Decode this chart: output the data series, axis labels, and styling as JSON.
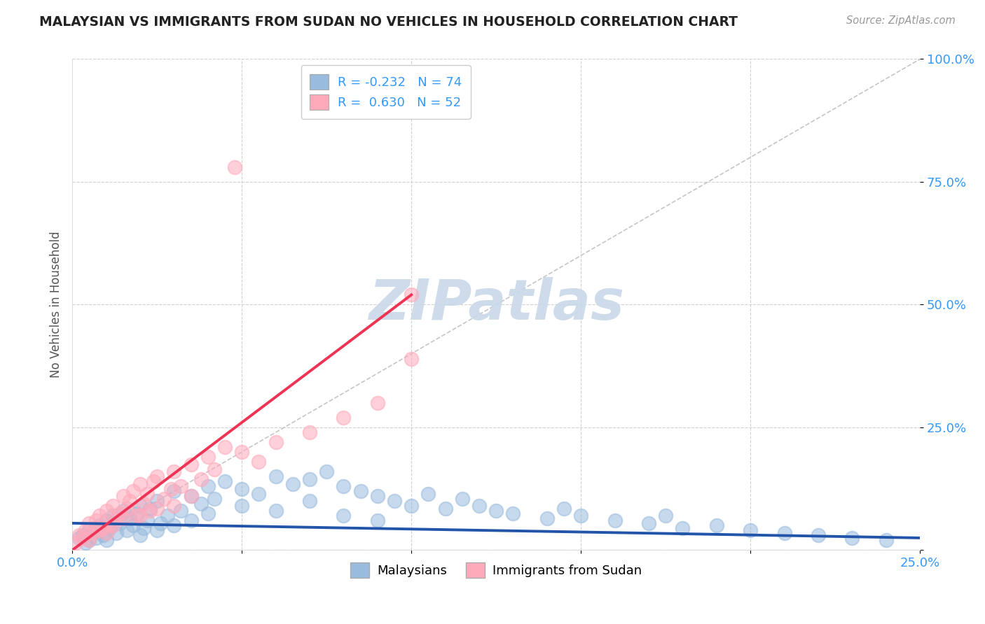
{
  "title": "MALAYSIAN VS IMMIGRANTS FROM SUDAN NO VEHICLES IN HOUSEHOLD CORRELATION CHART",
  "source_text": "Source: ZipAtlas.com",
  "ylabel": "No Vehicles in Household",
  "legend_blue_label": "Malaysians",
  "legend_pink_label": "Immigrants from Sudan",
  "legend_blue_r": "R = -0.232",
  "legend_blue_n": "N = 74",
  "legend_pink_r": "R =  0.630",
  "legend_pink_n": "N = 52",
  "blue_color": "#99BBDD",
  "pink_color": "#FFAABB",
  "trend_blue_color": "#2255AA",
  "trend_pink_color": "#EE3355",
  "diag_color": "#BBBBBB",
  "watermark_color": "#C8D8E8",
  "background_color": "#FFFFFF",
  "title_color": "#222222",
  "axis_label_color": "#3399FF",
  "xmin": 0.0,
  "xmax": 25.0,
  "ymin": 0.0,
  "ymax": 100.0,
  "blue_scatter_x": [
    0.2,
    0.3,
    0.4,
    0.5,
    0.5,
    0.6,
    0.7,
    0.8,
    0.9,
    1.0,
    1.0,
    1.1,
    1.2,
    1.3,
    1.4,
    1.5,
    1.6,
    1.7,
    1.8,
    1.9,
    2.0,
    2.1,
    2.2,
    2.3,
    2.5,
    2.6,
    2.8,
    3.0,
    3.2,
    3.5,
    3.8,
    4.0,
    4.2,
    4.5,
    5.0,
    5.5,
    6.0,
    6.5,
    7.0,
    7.5,
    8.0,
    8.5,
    9.0,
    9.5,
    10.0,
    10.5,
    11.0,
    11.5,
    12.0,
    12.5,
    13.0,
    14.0,
    14.5,
    15.0,
    16.0,
    17.0,
    17.5,
    18.0,
    19.0,
    20.0,
    21.0,
    22.0,
    23.0,
    24.0,
    2.0,
    2.5,
    3.0,
    3.5,
    4.0,
    5.0,
    6.0,
    7.0,
    8.0,
    9.0
  ],
  "blue_scatter_y": [
    2.5,
    3.0,
    1.5,
    4.0,
    2.0,
    3.5,
    2.5,
    5.0,
    3.0,
    6.0,
    2.0,
    4.5,
    7.0,
    3.5,
    5.5,
    8.0,
    4.0,
    6.5,
    5.0,
    7.5,
    9.0,
    4.5,
    6.0,
    8.5,
    10.0,
    5.5,
    7.0,
    12.0,
    8.0,
    11.0,
    9.5,
    13.0,
    10.5,
    14.0,
    12.5,
    11.5,
    15.0,
    13.5,
    14.5,
    16.0,
    13.0,
    12.0,
    11.0,
    10.0,
    9.0,
    11.5,
    8.5,
    10.5,
    9.0,
    8.0,
    7.5,
    6.5,
    8.5,
    7.0,
    6.0,
    5.5,
    7.0,
    4.5,
    5.0,
    4.0,
    3.5,
    3.0,
    2.5,
    2.0,
    3.0,
    4.0,
    5.0,
    6.0,
    7.5,
    9.0,
    8.0,
    10.0,
    7.0,
    6.0
  ],
  "pink_scatter_x": [
    0.1,
    0.2,
    0.3,
    0.4,
    0.5,
    0.6,
    0.7,
    0.8,
    0.9,
    1.0,
    1.1,
    1.2,
    1.3,
    1.4,
    1.5,
    1.6,
    1.7,
    1.8,
    1.9,
    2.0,
    2.1,
    2.2,
    2.3,
    2.4,
    2.5,
    2.7,
    2.9,
    3.0,
    3.2,
    3.5,
    3.8,
    4.0,
    4.2,
    4.5,
    5.0,
    5.5,
    6.0,
    7.0,
    8.0,
    9.0,
    10.0,
    0.5,
    0.8,
    1.0,
    1.2,
    1.5,
    2.0,
    2.5,
    3.0,
    3.5,
    4.8,
    10.0
  ],
  "pink_scatter_y": [
    1.5,
    3.0,
    2.5,
    4.0,
    5.5,
    3.5,
    6.0,
    7.0,
    4.5,
    8.0,
    5.0,
    9.0,
    6.5,
    7.5,
    11.0,
    8.5,
    10.0,
    12.0,
    7.0,
    13.5,
    9.5,
    11.5,
    8.0,
    14.0,
    15.0,
    10.5,
    12.5,
    16.0,
    13.0,
    17.5,
    14.5,
    19.0,
    16.5,
    21.0,
    20.0,
    18.0,
    22.0,
    24.0,
    27.0,
    30.0,
    52.0,
    2.0,
    4.0,
    3.5,
    5.0,
    6.5,
    7.0,
    8.5,
    9.0,
    11.0,
    78.0,
    39.0
  ],
  "blue_trend_x": [
    0.0,
    25.0
  ],
  "blue_trend_y": [
    5.5,
    2.5
  ],
  "pink_trend_x": [
    0.0,
    10.0
  ],
  "pink_trend_y": [
    0.0,
    52.0
  ],
  "diag_line_x": [
    0.0,
    25.0
  ],
  "diag_line_y": [
    0.0,
    100.0
  ]
}
